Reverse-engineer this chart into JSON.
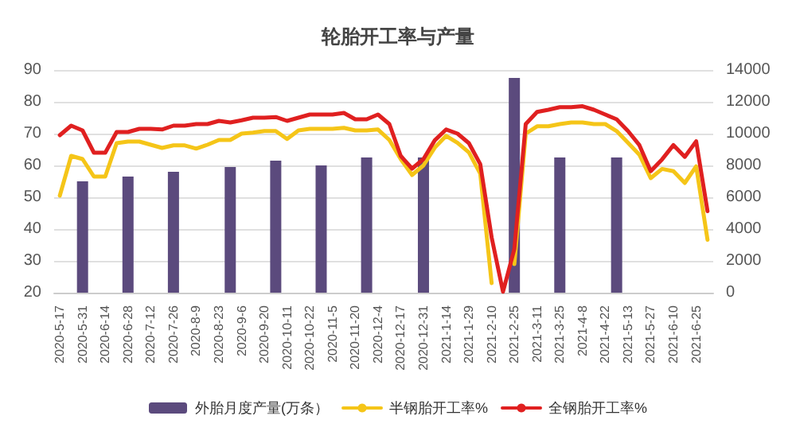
{
  "chart_data": {
    "type": "line",
    "title": "轮胎开工率与产量",
    "categories": [
      "2020-5-17",
      null,
      "2020-5-31",
      null,
      "2020-6-14",
      null,
      "2020-6-28",
      null,
      "2020-7-12",
      null,
      "2020-7-26",
      null,
      "2020-8-9",
      null,
      "2020-8-23",
      null,
      "2020-9-6",
      null,
      "2020-9-20",
      null,
      "2020-10-11",
      null,
      "2020-10-22",
      null,
      "2020-11-5",
      null,
      "2020-11-20",
      null,
      "2020-12-4",
      null,
      "2020-12-17",
      null,
      "2020-12-31",
      null,
      "2021-1-14",
      null,
      "2021-1-29",
      null,
      "2021-2-10",
      null,
      "2021-2-25",
      null,
      "2021-3-11",
      null,
      "2021-3-25",
      null,
      "2021-4-8",
      null,
      "2021-4-22",
      null,
      "2021-5-13",
      null,
      "2021-5-27",
      null,
      "2021-6-10",
      null,
      "2021-6-25",
      null
    ],
    "series": [
      {
        "name": "外胎月度产量(万条）",
        "type": "bar",
        "axis": "y2",
        "color": "#5b4a7d",
        "values": [
          null,
          null,
          7000,
          null,
          null,
          null,
          7300,
          null,
          null,
          null,
          7600,
          null,
          null,
          null,
          null,
          7900,
          null,
          null,
          null,
          8300,
          null,
          null,
          null,
          8000,
          null,
          null,
          null,
          8500,
          null,
          null,
          null,
          null,
          8500,
          null,
          null,
          null,
          null,
          null,
          null,
          null,
          13500,
          null,
          null,
          null,
          8500,
          null,
          null,
          null,
          null,
          8500,
          null,
          null,
          null,
          null,
          null,
          null,
          null,
          null
        ]
      },
      {
        "name": "半钢胎开工率%",
        "color": "#f5c518",
        "values": [
          50.5,
          63,
          62,
          56.5,
          56.5,
          67,
          67.5,
          67.5,
          66.5,
          65.5,
          66.3,
          66.3,
          65.3,
          66.5,
          68,
          68,
          70,
          70.3,
          70.8,
          70.8,
          68.3,
          71,
          71.5,
          71.5,
          71.5,
          71.8,
          71,
          71,
          71.3,
          68,
          62,
          57,
          60,
          65.6,
          69.3,
          67.1,
          64.1,
          57.4,
          23,
          null,
          29,
          70,
          72.3,
          72.3,
          73,
          73.5,
          73.5,
          73,
          73,
          70.8,
          67.1,
          63.4,
          56,
          58.9,
          58.2,
          54.5,
          59.7,
          36.6
        ]
      },
      {
        "name": "全钢胎开工率%",
        "color": "#e02020",
        "values": [
          69.5,
          72.5,
          71,
          64,
          64,
          70.5,
          70.5,
          71.5,
          71.5,
          71.3,
          72.5,
          72.5,
          73,
          73,
          74,
          73.5,
          74.2,
          75,
          75,
          75.2,
          74,
          75,
          76,
          76,
          76,
          76.5,
          74.5,
          74.5,
          76,
          73,
          63,
          59,
          62,
          67.9,
          71.3,
          70,
          67,
          60.4,
          37.4,
          20.3,
          33.7,
          73,
          76.8,
          77.5,
          78.3,
          78.3,
          78.6,
          77.5,
          76,
          74.5,
          70.8,
          66.4,
          58.2,
          61.9,
          66.4,
          62.7,
          67.6,
          45.6
        ]
      }
    ],
    "ylim": [
      20,
      90
    ],
    "yticks": [
      20,
      30,
      40,
      50,
      60,
      70,
      80,
      90
    ],
    "y2lim": [
      0,
      14000
    ],
    "y2ticks": [
      0,
      2000,
      4000,
      6000,
      8000,
      10000,
      12000,
      14000
    ],
    "grid": "y",
    "legend": "bottom",
    "marker": "none",
    "line_style": "solid"
  }
}
